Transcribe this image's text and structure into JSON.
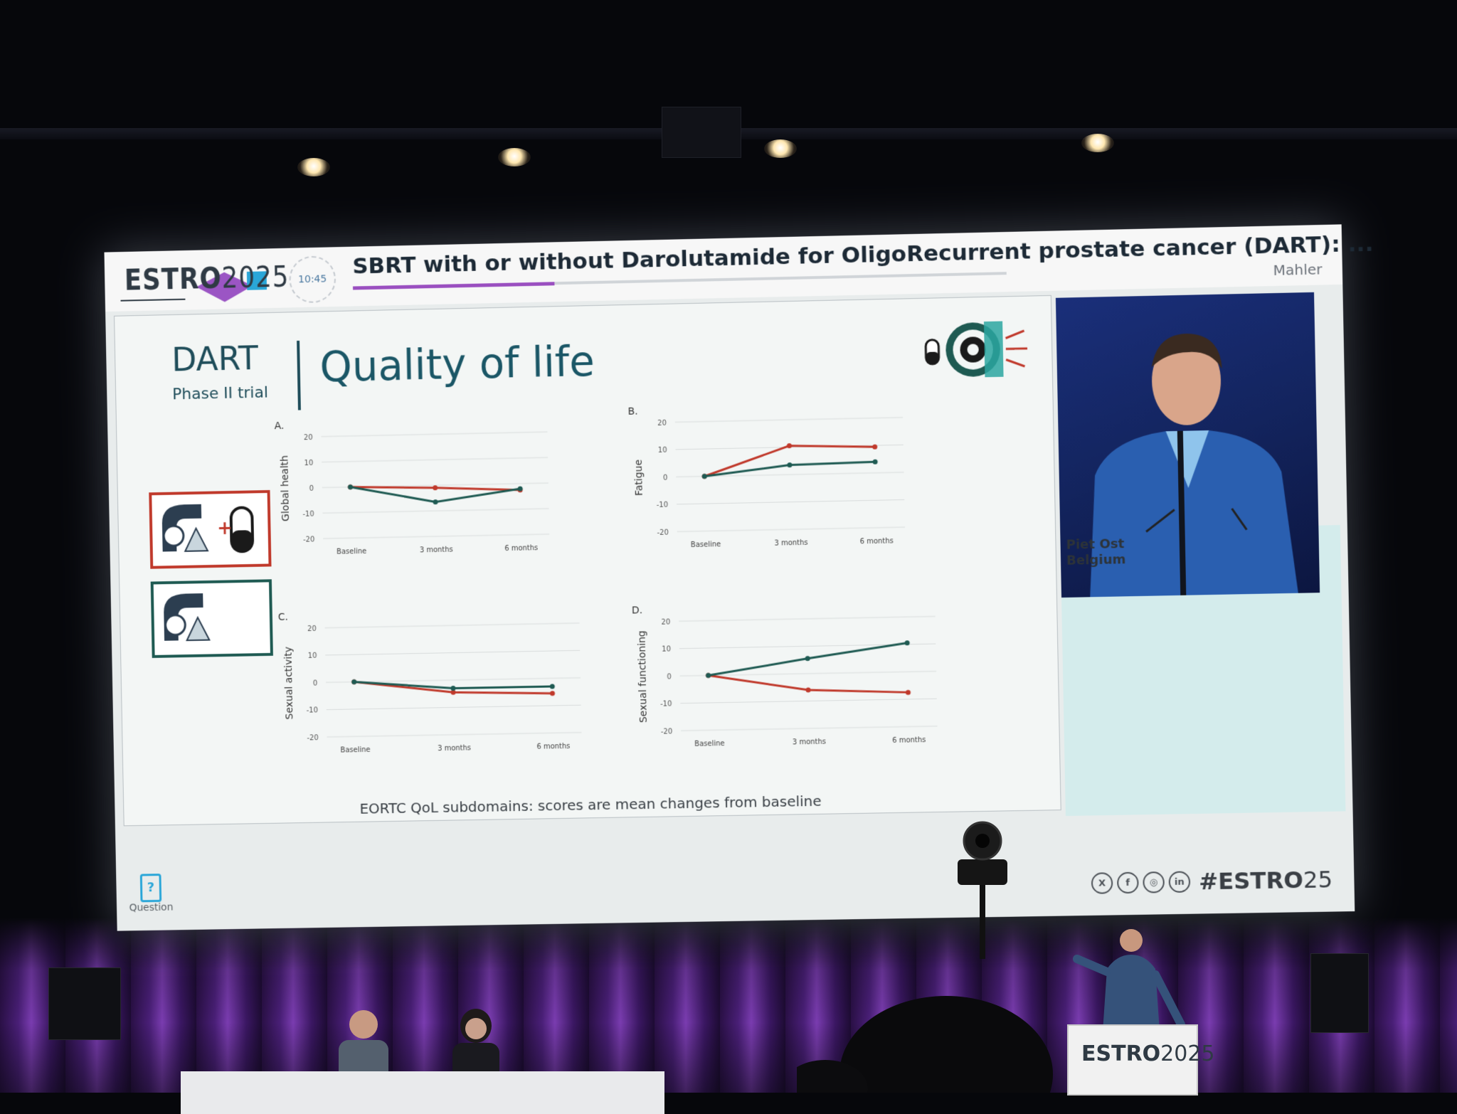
{
  "header": {
    "logo_text": "ESTRO",
    "logo_year": "2025",
    "timer": "10:45",
    "talk_title": "SBRT with or without Darolutamide for OligoRecurrent prostate cancer (DART): ...",
    "speaker_short": "Mahler",
    "progress": 0.31
  },
  "slide": {
    "left_title": "DART",
    "left_subtitle": "Phase II trial",
    "title": "Quality of life",
    "footnote": "EORTC QoL subdomains: scores are mean changes from baseline",
    "arm_combo_plus": "+"
  },
  "colors": {
    "combo_arm": "#c0392b",
    "sbrt_arm": "#1e5a52",
    "accent_purple": "#9a4fc0",
    "teal_title": "#1a5666"
  },
  "chart_data": [
    {
      "type": "line",
      "panel": "A.",
      "ylabel": "Global health",
      "categories": [
        "Baseline",
        "3 months",
        "6 months"
      ],
      "ylim": [
        -20,
        20
      ],
      "yticks": [
        20,
        10,
        0,
        -10,
        -20
      ],
      "series": [
        {
          "color": "#c0392b",
          "values": [
            0,
            -1,
            -2.5
          ]
        },
        {
          "color": "#1e5a52",
          "values": [
            0,
            -6.5,
            -2
          ]
        }
      ]
    },
    {
      "type": "line",
      "panel": "B.",
      "ylabel": "Fatigue",
      "categories": [
        "Baseline",
        "3 months",
        "6 months"
      ],
      "ylim": [
        -20,
        20
      ],
      "yticks": [
        20,
        10,
        0,
        -10,
        -20
      ],
      "series": [
        {
          "color": "#c0392b",
          "values": [
            0,
            10.5,
            9.5
          ]
        },
        {
          "color": "#1e5a52",
          "values": [
            0,
            3.5,
            4
          ]
        }
      ]
    },
    {
      "type": "line",
      "panel": "C.",
      "ylabel": "Sexual activity",
      "categories": [
        "Baseline",
        "3 months",
        "6 months"
      ],
      "ylim": [
        -20,
        20
      ],
      "yticks": [
        20,
        10,
        0,
        -10,
        -20
      ],
      "series": [
        {
          "color": "#c0392b",
          "values": [
            0,
            -4.5,
            -5.5
          ]
        },
        {
          "color": "#1e5a52",
          "values": [
            0,
            -3,
            -3
          ]
        }
      ]
    },
    {
      "type": "line",
      "panel": "D.",
      "ylabel": "Sexual functioning",
      "categories": [
        "Baseline",
        "3 months",
        "6 months"
      ],
      "ylim": [
        -20,
        20
      ],
      "yticks": [
        20,
        10,
        0,
        -10,
        -20
      ],
      "series": [
        {
          "color": "#c0392b",
          "values": [
            0,
            -6,
            -7.5
          ]
        },
        {
          "color": "#1e5a52",
          "values": [
            0,
            5.5,
            10.5
          ]
        }
      ]
    }
  ],
  "video": {
    "speaker_name": "Piet Ost",
    "speaker_country": "Belgium"
  },
  "footer": {
    "question_label": "Question",
    "question_icon": "?",
    "social_icons": [
      "X",
      "f",
      "◎",
      "in"
    ],
    "hashtag": "#ESTRO",
    "hashtag_year": "25"
  },
  "stage": {
    "lectern_logo": "ESTRO",
    "lectern_year": "2025"
  }
}
